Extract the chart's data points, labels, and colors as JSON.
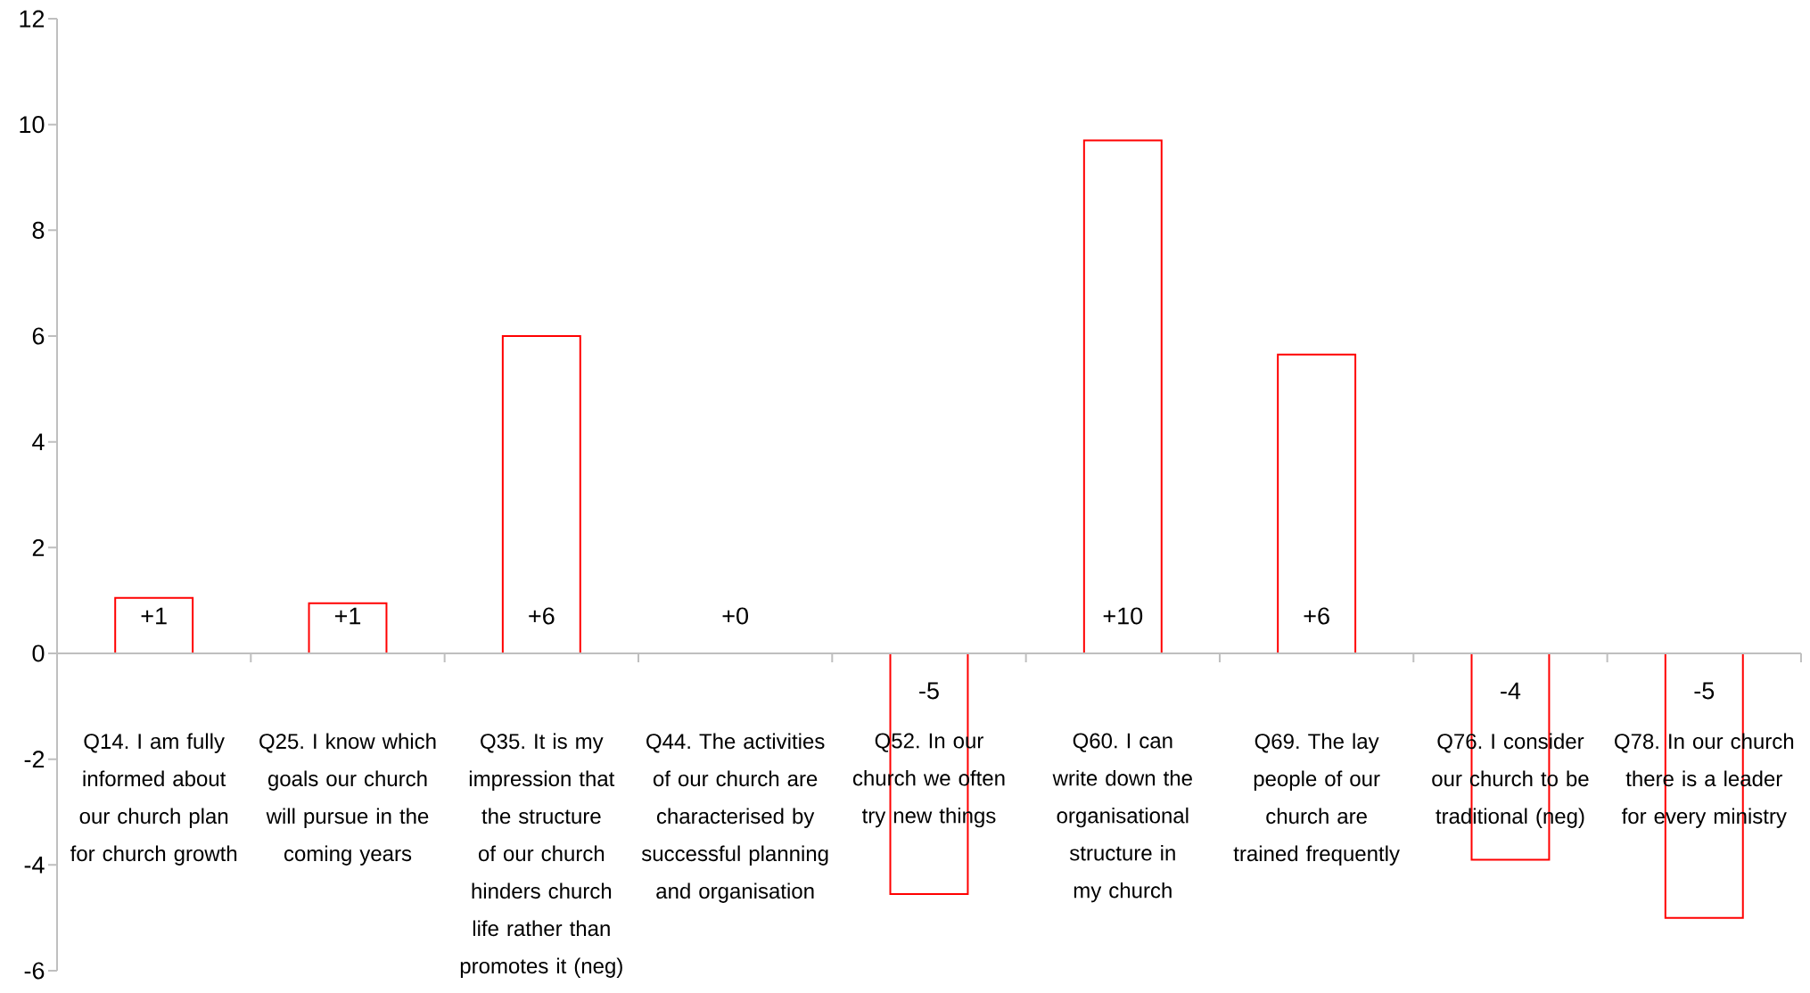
{
  "chart_data": {
    "type": "bar",
    "categories": [
      "Q14. I am fully informed about our church plan for church growth",
      "Q25. I know which goals our church will pursue in the coming years",
      "Q35. It is my impression that the structure of our church hinders church life rather than promotes it (neg)",
      "Q44. The activities of our church are characterised by successful planning and organisation",
      "Q52. In our church we often try new things",
      "Q60. I can write down the organisational structure in my church",
      "Q69. The lay people of our church are trained frequently",
      "Q76. I consider our church to be traditional (neg)",
      "Q78. In our church there is a leader for every ministry"
    ],
    "values": [
      1.05,
      0.95,
      6.0,
      0,
      -4.55,
      9.7,
      5.65,
      -3.9,
      -5.0
    ],
    "value_labels": [
      "+1",
      "+1",
      "+6",
      "+0",
      "-5",
      "+10",
      "+6",
      "-4",
      "-5"
    ],
    "color": "#ff0000",
    "ylim": [
      -6,
      12
    ],
    "yticks": [
      -6,
      -4,
      -2,
      0,
      2,
      4,
      6,
      8,
      10,
      12
    ]
  }
}
